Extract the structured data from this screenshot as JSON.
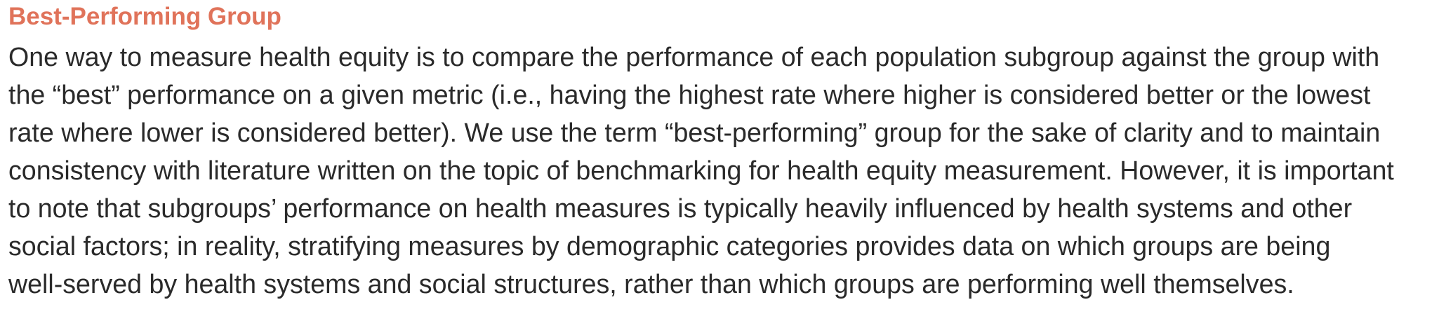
{
  "section": {
    "title": "Best-Performing Group",
    "lines": [
      "One way to measure health equity is to compare the performance of each population subgroup against the group with",
      "the “best” performance on a given metric (i.e., having the highest rate where higher is considered better or the lowest",
      "rate where lower is considered better). We use the term “best-performing” group for the sake of clarity and to maintain",
      "consistency with literature written on the topic of benchmarking for health equity measurement. However, it is important",
      "to note that subgroups’ performance on health measures is typically heavily influenced by health systems and other",
      "social factors; in reality, stratifying measures by demographic categories provides data on which groups are being",
      "well-served by health systems and social structures, rather than which groups are performing well themselves."
    ]
  },
  "colors": {
    "heading": "#e0735a",
    "body_text": "#2a2a2a",
    "background": "#ffffff"
  }
}
